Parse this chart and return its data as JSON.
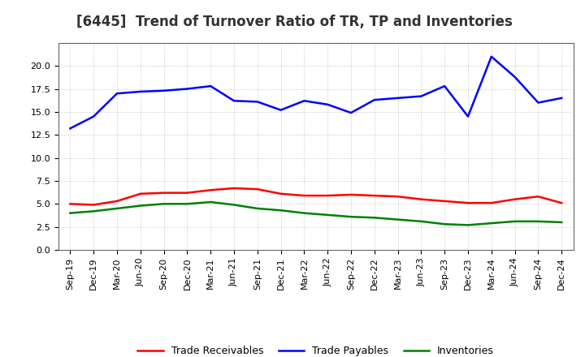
{
  "title": "[6445]  Trend of Turnover Ratio of TR, TP and Inventories",
  "x_labels": [
    "Sep-19",
    "Dec-19",
    "Mar-20",
    "Jun-20",
    "Sep-20",
    "Dec-20",
    "Mar-21",
    "Jun-21",
    "Sep-21",
    "Dec-21",
    "Mar-22",
    "Jun-22",
    "Sep-22",
    "Dec-22",
    "Mar-23",
    "Jun-23",
    "Sep-23",
    "Dec-23",
    "Mar-24",
    "Jun-24",
    "Sep-24",
    "Dec-24"
  ],
  "trade_receivables": [
    5.0,
    4.9,
    5.3,
    6.1,
    6.2,
    6.2,
    6.5,
    6.7,
    6.6,
    6.1,
    5.9,
    5.9,
    6.0,
    5.9,
    5.8,
    5.5,
    5.3,
    5.1,
    5.1,
    5.5,
    5.8,
    5.1
  ],
  "trade_payables": [
    13.2,
    14.5,
    17.0,
    17.2,
    17.3,
    17.5,
    17.8,
    16.2,
    16.1,
    15.2,
    16.2,
    15.8,
    14.9,
    16.3,
    16.5,
    16.7,
    17.8,
    14.5,
    21.0,
    18.8,
    16.0,
    16.5
  ],
  "inventories": [
    4.0,
    4.2,
    4.5,
    4.8,
    5.0,
    5.0,
    5.2,
    4.9,
    4.5,
    4.3,
    4.0,
    3.8,
    3.6,
    3.5,
    3.3,
    3.1,
    2.8,
    2.7,
    2.9,
    3.1,
    3.1,
    3.0
  ],
  "ylim": [
    0.0,
    22.5
  ],
  "yticks": [
    0.0,
    2.5,
    5.0,
    7.5,
    10.0,
    12.5,
    15.0,
    17.5,
    20.0
  ],
  "line_colors": {
    "trade_receivables": "#ff0000",
    "trade_payables": "#0000ff",
    "inventories": "#008000"
  },
  "legend_labels": [
    "Trade Receivables",
    "Trade Payables",
    "Inventories"
  ],
  "background_color": "#ffffff",
  "grid_color": "#bbbbbb",
  "title_color": "#333333",
  "title_fontsize": 12,
  "tick_fontsize": 8,
  "legend_fontsize": 9
}
